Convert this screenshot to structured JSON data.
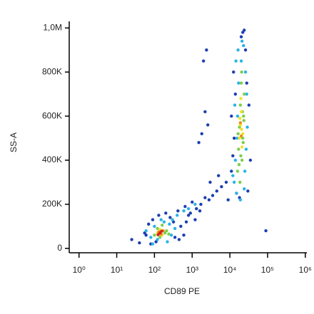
{
  "chart_data": {
    "type": "scatter",
    "x_label": "CD89 PE",
    "y_label": "SS-A",
    "xscale": "log",
    "xlim": [
      0.55,
      1100000
    ],
    "xticks": [
      {
        "value": 1,
        "label": "10⁰"
      },
      {
        "value": 10,
        "label": "10¹"
      },
      {
        "value": 100,
        "label": "10²"
      },
      {
        "value": 1000,
        "label": "10³"
      },
      {
        "value": 10000,
        "label": "10⁴"
      },
      {
        "value": 100000,
        "label": "10⁵"
      },
      {
        "value": 1000000,
        "label": "10⁶"
      }
    ],
    "ylim": [
      -20000,
      1030000
    ],
    "yticks": [
      0,
      {
        "value": 200000,
        "label": "200K"
      },
      {
        "value": 400000,
        "label": "400K"
      },
      {
        "value": 600000,
        "label": "600K"
      },
      {
        "value": 800000,
        "label": "800K"
      },
      {
        "value": 1000000,
        "label": "1,0M"
      }
    ],
    "grid": false,
    "series": [
      {
        "color": "#1c3fb0",
        "x": [
          25,
          40,
          55,
          70,
          90,
          110,
          130,
          200,
          260,
          320,
          420,
          500,
          650,
          800,
          1000,
          1300,
          1700,
          2200,
          2800,
          3500,
          4500,
          6000,
          8000,
          9000,
          11000,
          12000,
          13000,
          14000,
          30000,
          35000,
          1500,
          1800,
          2200,
          2600,
          2000,
          2400,
          60,
          80,
          350,
          450,
          700,
          900,
          1200,
          1600,
          11000,
          12500,
          28000,
          32000,
          26000,
          15000,
          20000,
          22000,
          24000,
          18000,
          90000,
          600,
          3000,
          5000
        ],
        "values": [
          40000,
          25000,
          70000,
          110000,
          130000,
          30000,
          150000,
          160000,
          140000,
          120000,
          170000,
          100000,
          190000,
          150000,
          210000,
          180000,
          200000,
          230000,
          220000,
          240000,
          260000,
          280000,
          300000,
          220000,
          350000,
          420000,
          500000,
          700000,
          260000,
          400000,
          480000,
          520000,
          620000,
          560000,
          850000,
          900000,
          60000,
          20000,
          50000,
          40000,
          120000,
          160000,
          130000,
          170000,
          600000,
          800000,
          750000,
          650000,
          900000,
          250000,
          960000,
          980000,
          990000,
          230000,
          80000,
          60000,
          300000,
          330000
        ]
      },
      {
        "color": "#2ab4e6",
        "x": [
          60,
          80,
          100,
          120,
          180,
          220,
          280,
          350,
          90,
          250,
          300,
          150,
          400,
          600,
          800,
          1200,
          13000,
          14000,
          15000,
          16000,
          17000,
          25000,
          27000,
          29000,
          14500,
          16500,
          28000,
          26000,
          15500,
          24000,
          19000,
          21000,
          23000,
          13500,
          12000,
          20000
        ],
        "values": [
          80000,
          50000,
          100000,
          40000,
          120000,
          30000,
          60000,
          90000,
          20000,
          110000,
          130000,
          130000,
          150000,
          170000,
          180000,
          200000,
          300000,
          400000,
          250000,
          600000,
          750000,
          350000,
          450000,
          550000,
          850000,
          900000,
          700000,
          800000,
          500000,
          270000,
          220000,
          940000,
          920000,
          650000,
          330000,
          850000
        ]
      },
      {
        "color": "#7ccf4a",
        "x": [
          100,
          120,
          140,
          160,
          190,
          210,
          240,
          16000,
          17000,
          18000,
          19000,
          20000,
          21000,
          22000,
          23000,
          24000,
          18500,
          20500,
          17500,
          21500,
          19500,
          22500,
          16500,
          23500
        ],
        "values": [
          60000,
          90000,
          50000,
          105000,
          70000,
          80000,
          65000,
          350000,
          450000,
          550000,
          650000,
          750000,
          400000,
          500000,
          600000,
          700000,
          300000,
          800000,
          380000,
          620000,
          420000,
          480000,
          520000,
          580000
        ]
      },
      {
        "color": "#f2e22a",
        "x": [
          120,
          140,
          160,
          18000,
          19000,
          20000,
          21000,
          19500,
          20500,
          18500,
          22000
        ],
        "values": [
          70000,
          85000,
          60000,
          500000,
          560000,
          620000,
          460000,
          680000,
          540000,
          590000,
          520000
        ]
      },
      {
        "color": "#ef8a1c",
        "x": [
          130,
          150,
          170,
          19000,
          20000
        ],
        "values": [
          75000,
          65000,
          80000,
          570000,
          510000
        ]
      },
      {
        "color": "#d6261d",
        "x": [
          140,
          155,
          125
        ],
        "values": [
          70000,
          78000,
          62000
        ]
      }
    ]
  }
}
